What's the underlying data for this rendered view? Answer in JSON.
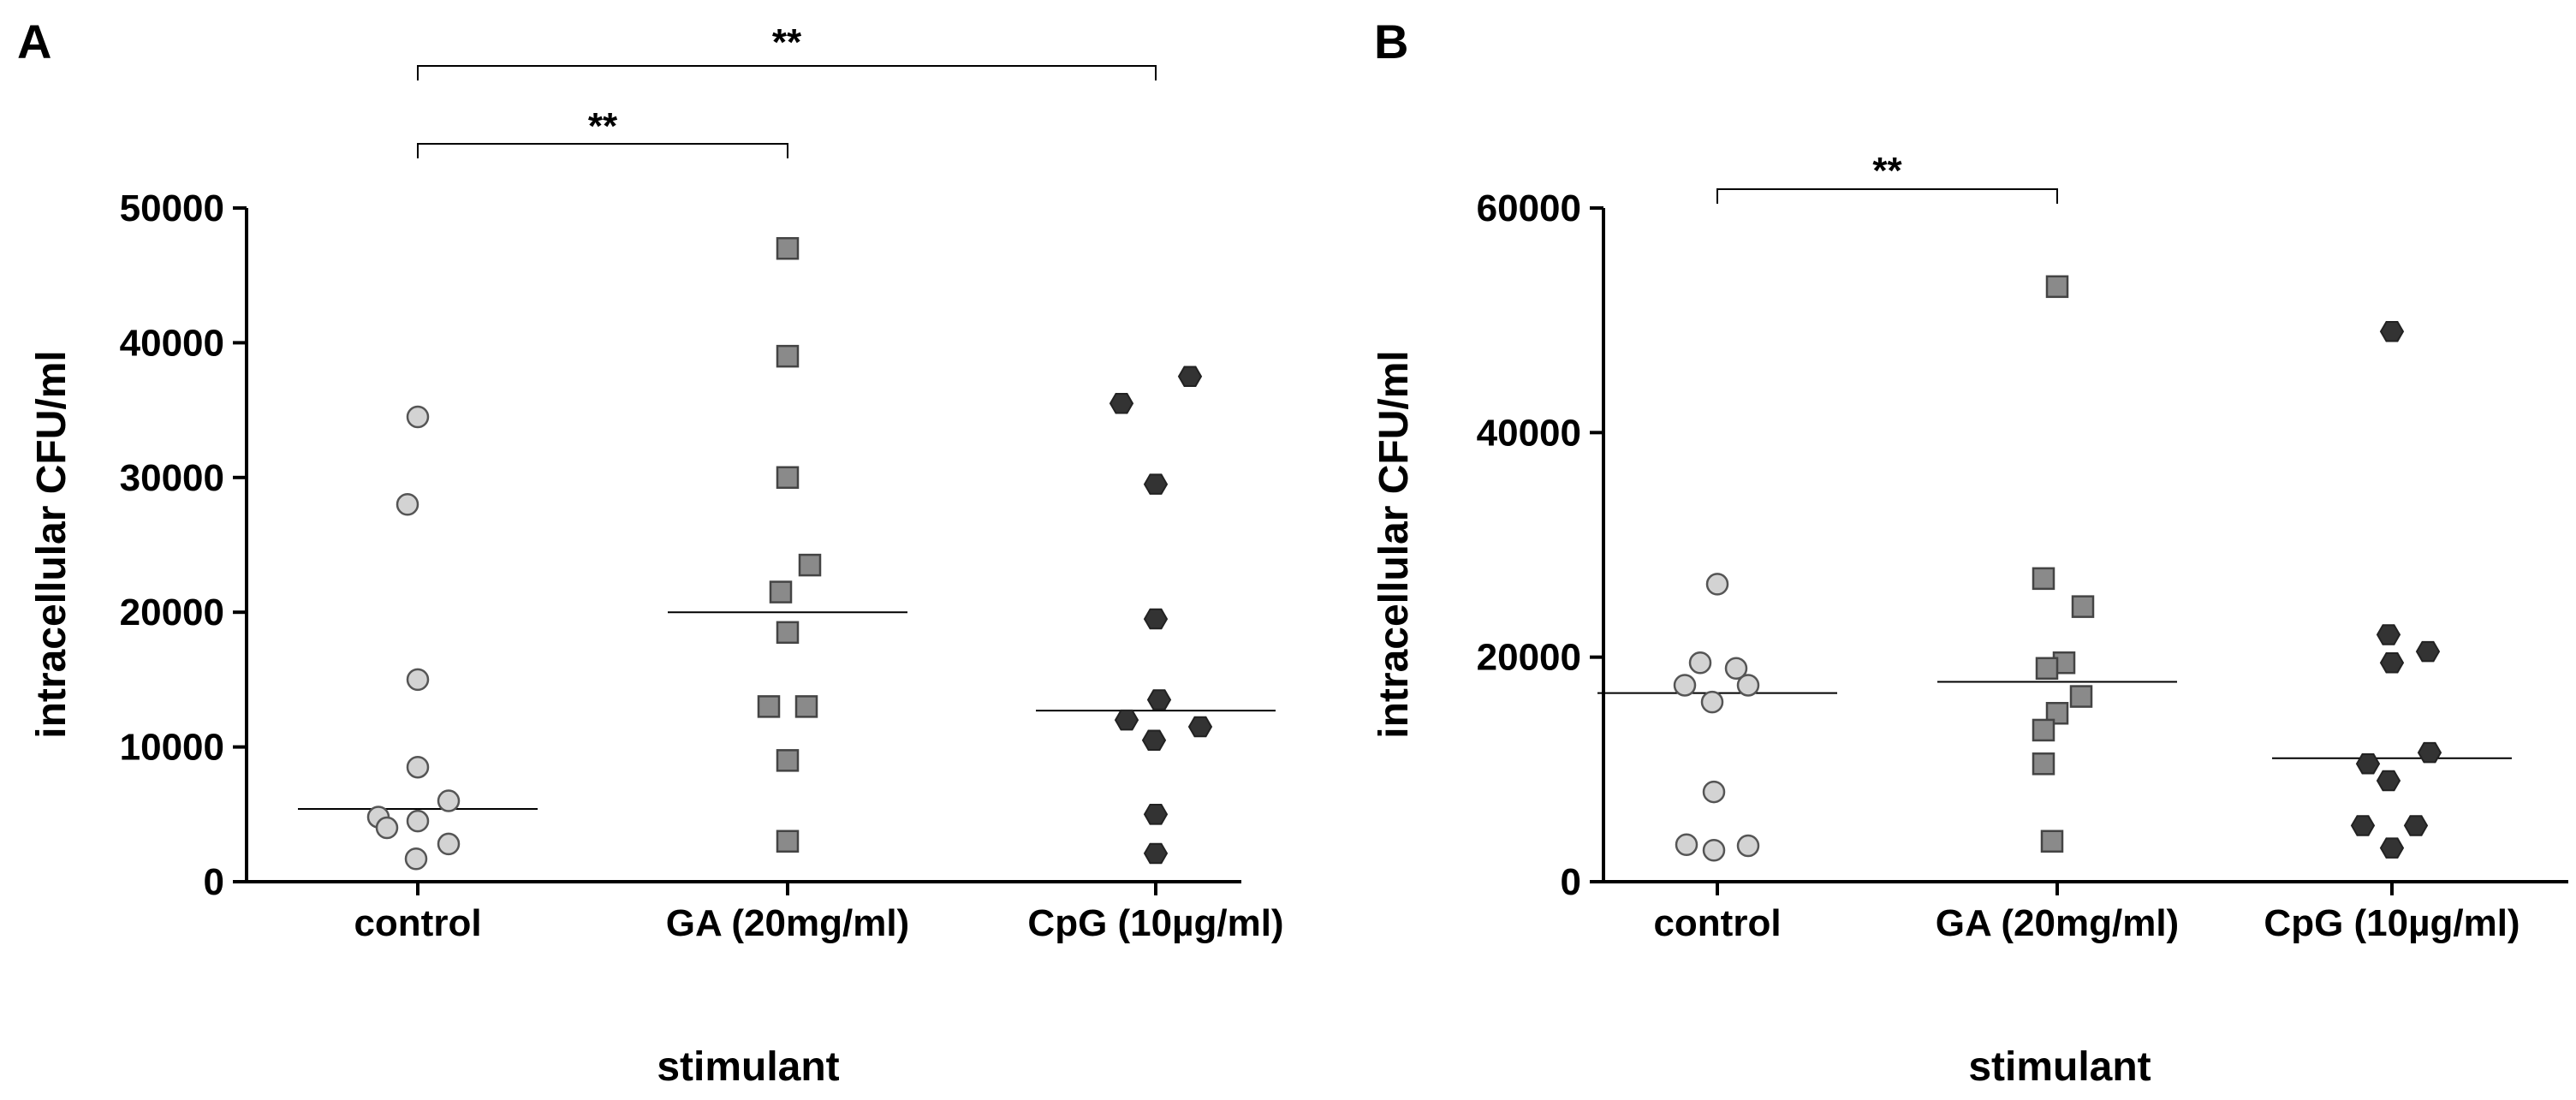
{
  "chart_data": [
    {
      "type": "scatter",
      "panel_label": "A",
      "categories": [
        "control",
        "GA (20mg/ml)",
        "CpG (10µg/ml)"
      ],
      "ylabel": "intracellular CFU/ml",
      "xlabel": "stimulant",
      "ylim": [
        0,
        50000
      ],
      "yticks": [
        0,
        10000,
        20000,
        30000,
        40000,
        50000
      ],
      "yticklabels": [
        "0",
        "10000",
        "20000",
        "30000",
        "40000",
        "50000"
      ],
      "series": [
        {
          "name": "control",
          "marker": "circle",
          "color": "#d3d3d3",
          "values": [
            34500,
            28000,
            15000,
            8500,
            6000,
            4800,
            4500,
            4000,
            2800,
            1700
          ],
          "median": 5400
        },
        {
          "name": "GA (20mg/ml)",
          "marker": "square",
          "color": "#8a8a8a",
          "values": [
            47000,
            39000,
            30000,
            23500,
            21500,
            18500,
            13000,
            13000,
            9000,
            3000
          ],
          "median": 20000
        },
        {
          "name": "CpG (10µg/ml)",
          "marker": "hexagon",
          "color": "#333333",
          "values": [
            37500,
            35500,
            29500,
            19500,
            13500,
            12000,
            11500,
            10500,
            5000,
            2100
          ],
          "median": 12700
        }
      ],
      "significance": [
        {
          "from": 0,
          "to": 1,
          "label": "**"
        },
        {
          "from": 0,
          "to": 2,
          "label": "**"
        }
      ]
    },
    {
      "type": "scatter",
      "panel_label": "B",
      "categories": [
        "control",
        "GA (20mg/ml)",
        "CpG (10µg/ml)"
      ],
      "ylabel": "intracellular CFU/ml",
      "xlabel": "stimulant",
      "ylim": [
        0,
        60000
      ],
      "yticks": [
        0,
        20000,
        40000,
        60000
      ],
      "yticklabels": [
        "0",
        "20000",
        "40000",
        "60000"
      ],
      "series": [
        {
          "name": "control",
          "marker": "circle",
          "color": "#d3d3d3",
          "values": [
            26500,
            19500,
            19000,
            17500,
            17500,
            16000,
            8000,
            3300,
            3200,
            2800
          ],
          "median": 16800
        },
        {
          "name": "GA (20mg/ml)",
          "marker": "square",
          "color": "#8a8a8a",
          "values": [
            53000,
            27000,
            24500,
            19500,
            19000,
            16500,
            15000,
            13500,
            10500,
            3600
          ],
          "median": 17800
        },
        {
          "name": "CpG (10µg/ml)",
          "marker": "hexagon",
          "color": "#333333",
          "values": [
            49000,
            22000,
            20500,
            19500,
            11500,
            10500,
            9000,
            5000,
            5000,
            3000
          ],
          "median": 11000
        }
      ],
      "significance": [
        {
          "from": 0,
          "to": 1,
          "label": "**"
        }
      ]
    }
  ]
}
